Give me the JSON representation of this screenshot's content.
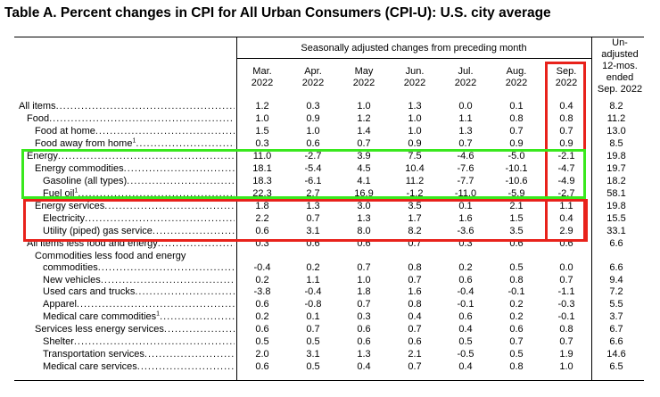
{
  "title": "Table A. Percent changes in CPI for All Urban Consumers (CPI-U): U.S. city average",
  "header": {
    "group": "Seasonally adjusted changes from preceding month",
    "months": [
      [
        "Mar.",
        "2022"
      ],
      [
        "Apr.",
        "2022"
      ],
      [
        "May",
        "2022"
      ],
      [
        "Jun.",
        "2022"
      ],
      [
        "Jul.",
        "2022"
      ],
      [
        "Aug.",
        "2022"
      ],
      [
        "Sep.",
        "2022"
      ]
    ],
    "unadjusted": [
      "Un-",
      "adjusted",
      "12-mos.",
      "ended",
      "Sep. 2022"
    ]
  },
  "rows": [
    {
      "label": "All items",
      "note": "",
      "values": [
        "1.2",
        "0.3",
        "1.0",
        "1.3",
        "0.0",
        "0.1",
        "0.4",
        "8.2"
      ]
    },
    {
      "label": "Food",
      "note": "",
      "values": [
        "1.0",
        "0.9",
        "1.2",
        "1.0",
        "1.1",
        "0.8",
        "0.8",
        "11.2"
      ]
    },
    {
      "label": "Food at home",
      "note": "",
      "values": [
        "1.5",
        "1.0",
        "1.4",
        "1.0",
        "1.3",
        "0.7",
        "0.7",
        "13.0"
      ]
    },
    {
      "label": "Food away from home",
      "note": "1",
      "values": [
        "0.3",
        "0.6",
        "0.7",
        "0.9",
        "0.7",
        "0.9",
        "0.9",
        "8.5"
      ]
    },
    {
      "label": "Energy",
      "note": "",
      "values": [
        "11.0",
        "-2.7",
        "3.9",
        "7.5",
        "-4.6",
        "-5.0",
        "-2.1",
        "19.8"
      ]
    },
    {
      "label": "Energy commodities",
      "note": "",
      "values": [
        "18.1",
        "-5.4",
        "4.5",
        "10.4",
        "-7.6",
        "-10.1",
        "-4.7",
        "19.7"
      ]
    },
    {
      "label": "Gasoline (all types)",
      "note": "",
      "values": [
        "18.3",
        "-6.1",
        "4.1",
        "11.2",
        "-7.7",
        "-10.6",
        "-4.9",
        "18.2"
      ]
    },
    {
      "label": "Fuel oil",
      "note": "1",
      "values": [
        "22.3",
        "2.7",
        "16.9",
        "-1.2",
        "-11.0",
        "-5.9",
        "-2.7",
        "58.1"
      ]
    },
    {
      "label": "Energy services",
      "note": "",
      "values": [
        "1.8",
        "1.3",
        "3.0",
        "3.5",
        "0.1",
        "2.1",
        "1.1",
        "19.8"
      ]
    },
    {
      "label": "Electricity",
      "note": "",
      "values": [
        "2.2",
        "0.7",
        "1.3",
        "1.7",
        "1.6",
        "1.5",
        "0.4",
        "15.5"
      ]
    },
    {
      "label": "Utility (piped) gas service",
      "note": "",
      "values": [
        "0.6",
        "3.1",
        "8.0",
        "8.2",
        "-3.6",
        "3.5",
        "2.9",
        "33.1"
      ]
    },
    {
      "label": "All items less food and energy",
      "note": "",
      "values": [
        "0.3",
        "0.6",
        "0.6",
        "0.7",
        "0.3",
        "0.6",
        "0.6",
        "6.6"
      ]
    },
    {
      "label": "Commodities less food and energy",
      "note": "",
      "values": [
        "",
        "",
        "",
        "",
        "",
        "",
        "",
        ""
      ]
    },
    {
      "label": "commodities",
      "note": "",
      "values": [
        "-0.4",
        "0.2",
        "0.7",
        "0.8",
        "0.2",
        "0.5",
        "0.0",
        "6.6"
      ]
    },
    {
      "label": "New vehicles",
      "note": "",
      "values": [
        "0.2",
        "1.1",
        "1.0",
        "0.7",
        "0.6",
        "0.8",
        "0.7",
        "9.4"
      ]
    },
    {
      "label": "Used cars and trucks",
      "note": "",
      "values": [
        "-3.8",
        "-0.4",
        "1.8",
        "1.6",
        "-0.4",
        "-0.1",
        "-1.1",
        "7.2"
      ]
    },
    {
      "label": "Apparel",
      "note": "",
      "values": [
        "0.6",
        "-0.8",
        "0.7",
        "0.8",
        "-0.1",
        "0.2",
        "-0.3",
        "5.5"
      ]
    },
    {
      "label": "Medical care commodities",
      "note": "1",
      "values": [
        "0.2",
        "0.1",
        "0.3",
        "0.4",
        "0.6",
        "0.2",
        "-0.1",
        "3.7"
      ]
    },
    {
      "label": "Services less energy services",
      "note": "",
      "values": [
        "0.6",
        "0.7",
        "0.6",
        "0.7",
        "0.4",
        "0.6",
        "0.8",
        "6.7"
      ]
    },
    {
      "label": "Shelter",
      "note": "",
      "values": [
        "0.5",
        "0.5",
        "0.6",
        "0.6",
        "0.5",
        "0.7",
        "0.7",
        "6.6"
      ]
    },
    {
      "label": "Transportation services",
      "note": "",
      "values": [
        "2.0",
        "3.1",
        "1.3",
        "2.1",
        "-0.5",
        "0.5",
        "1.9",
        "14.6"
      ]
    },
    {
      "label": "Medical care services",
      "note": "",
      "values": [
        "0.6",
        "0.5",
        "0.4",
        "0.7",
        "0.4",
        "0.8",
        "1.0",
        "6.5"
      ]
    }
  ],
  "highlights": {
    "red": "#e8221b",
    "green": "#39e81d"
  }
}
